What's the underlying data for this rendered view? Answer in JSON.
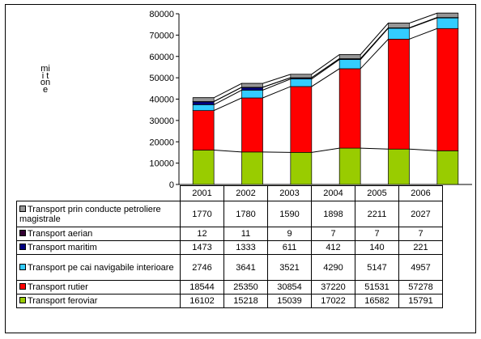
{
  "chart_data": {
    "type": "bar",
    "stacked": true,
    "categories": [
      "2001",
      "2002",
      "2003",
      "2004",
      "2005",
      "2006"
    ],
    "ylabel": "mii tone",
    "ylim": [
      0,
      80000
    ],
    "yticks": [
      0,
      10000,
      20000,
      30000,
      40000,
      50000,
      60000,
      70000,
      80000
    ],
    "grid": false,
    "legend": "data-table-below",
    "series": [
      {
        "name": "Transport feroviar",
        "color": "#99cc00",
        "values": [
          16102,
          15218,
          15039,
          17022,
          16582,
          15791
        ]
      },
      {
        "name": "Transport rutier",
        "color": "#ff0000",
        "values": [
          18544,
          25350,
          30854,
          37220,
          51531,
          57278
        ]
      },
      {
        "name": "Transport pe cai navigabile interioare",
        "color": "#33ccff",
        "values": [
          2746,
          3641,
          3521,
          4290,
          5147,
          4957
        ]
      },
      {
        "name": "Transport maritim",
        "color": "#000080",
        "values": [
          1473,
          1333,
          611,
          412,
          140,
          221
        ]
      },
      {
        "name": "Transport aerian",
        "color": "#330033",
        "values": [
          12,
          11,
          9,
          7,
          7,
          7
        ]
      },
      {
        "name": "Transport prin conducte petroliere magistrale",
        "color": "#969696",
        "values": [
          1770,
          1780,
          1590,
          1898,
          2211,
          2027
        ]
      }
    ],
    "table_order": [
      5,
      4,
      3,
      2,
      1,
      0
    ]
  }
}
